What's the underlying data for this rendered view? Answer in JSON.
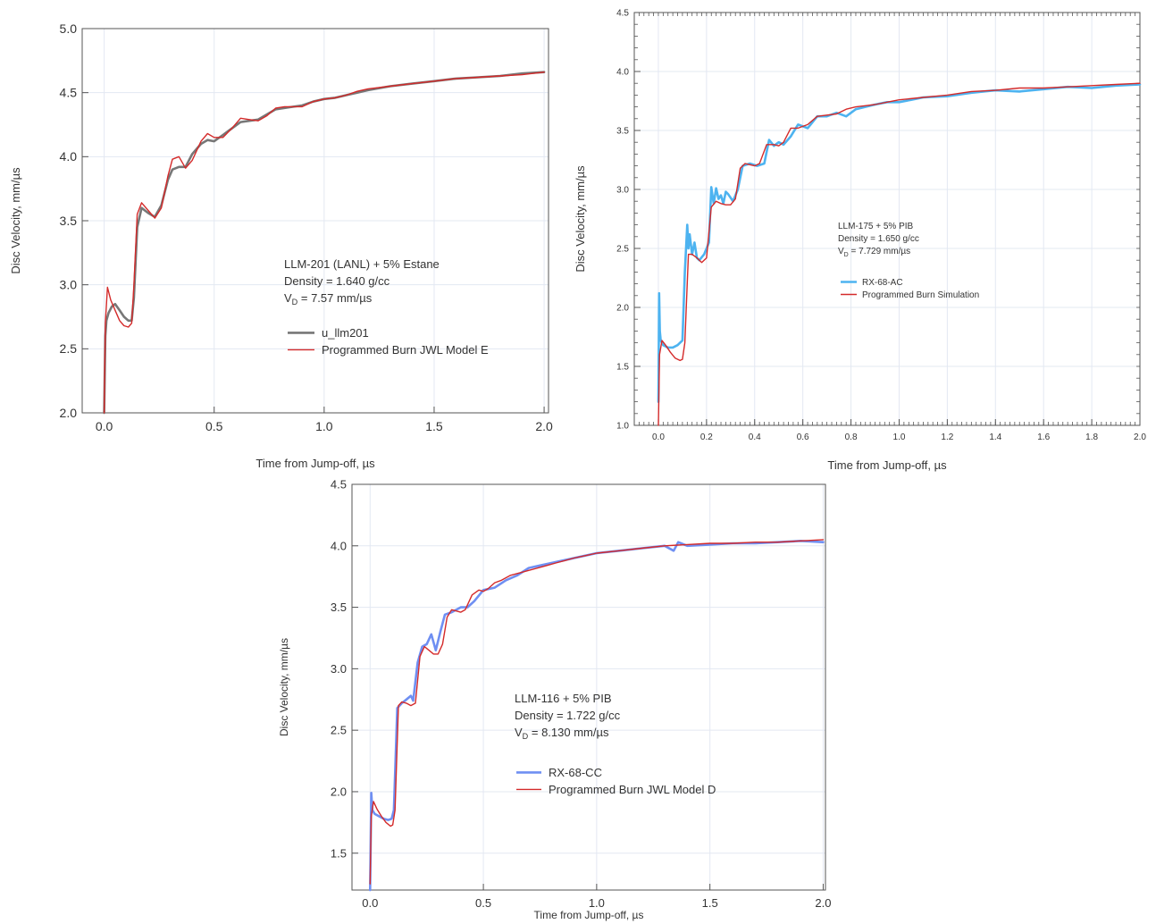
{
  "chart_data": [
    {
      "type": "line",
      "xlabel": "Time from Jump-off,  µs",
      "ylabel": "Disc Velocity,  mm/µs",
      "xlim": [
        -0.1,
        2.02
      ],
      "ylim": [
        2.0,
        5.0
      ],
      "x_ticks": [
        "0.0",
        "0.5",
        "1.0",
        "1.5",
        "2.0"
      ],
      "y_ticks": [
        "2.0",
        "2.5",
        "3.0",
        "3.5",
        "4.0",
        "4.5",
        "5.0"
      ],
      "grid": true,
      "annotation": {
        "line1": "LLM-201 (LANL) + 5% Estane",
        "line2": "Density = 1.640 g/cc",
        "line3_pre": "V",
        "line3_sub": "D",
        "line3_post": " = 7.57 mm/µs"
      },
      "series": [
        {
          "name": "u_llm201",
          "color": "#777777",
          "x": [
            0.0,
            0.005,
            0.01,
            0.02,
            0.035,
            0.05,
            0.07,
            0.09,
            0.11,
            0.125,
            0.135,
            0.15,
            0.17,
            0.2,
            0.23,
            0.26,
            0.29,
            0.31,
            0.34,
            0.37,
            0.4,
            0.44,
            0.47,
            0.5,
            0.54,
            0.58,
            0.62,
            0.66,
            0.7,
            0.74,
            0.78,
            0.82,
            0.86,
            0.9,
            0.95,
            1.0,
            1.05,
            1.1,
            1.15,
            1.2,
            1.3,
            1.4,
            1.5,
            1.6,
            1.7,
            1.8,
            1.9,
            2.0
          ],
          "y": [
            2.0,
            2.6,
            2.72,
            2.78,
            2.83,
            2.85,
            2.8,
            2.75,
            2.72,
            2.72,
            2.9,
            3.45,
            3.6,
            3.56,
            3.53,
            3.62,
            3.82,
            3.9,
            3.92,
            3.92,
            4.02,
            4.1,
            4.13,
            4.12,
            4.17,
            4.22,
            4.27,
            4.28,
            4.29,
            4.33,
            4.37,
            4.38,
            4.39,
            4.4,
            4.43,
            4.45,
            4.46,
            4.48,
            4.5,
            4.52,
            4.55,
            4.57,
            4.59,
            4.61,
            4.62,
            4.63,
            4.65,
            4.66
          ]
        },
        {
          "name": "Programmed Burn JWL Model E",
          "color": "#d42a2a",
          "x": [
            0.0,
            0.005,
            0.015,
            0.03,
            0.05,
            0.07,
            0.09,
            0.11,
            0.125,
            0.135,
            0.15,
            0.17,
            0.2,
            0.23,
            0.26,
            0.29,
            0.31,
            0.34,
            0.37,
            0.4,
            0.44,
            0.47,
            0.5,
            0.54,
            0.58,
            0.62,
            0.66,
            0.7,
            0.74,
            0.78,
            0.82,
            0.86,
            0.9,
            0.95,
            1.0,
            1.05,
            1.1,
            1.15,
            1.2,
            1.3,
            1.4,
            1.5,
            1.6,
            1.7,
            1.8,
            1.9,
            2.0
          ],
          "y": [
            2.0,
            2.7,
            2.98,
            2.88,
            2.8,
            2.72,
            2.68,
            2.67,
            2.7,
            3.0,
            3.55,
            3.64,
            3.58,
            3.52,
            3.6,
            3.85,
            3.98,
            4.0,
            3.91,
            3.97,
            4.12,
            4.18,
            4.15,
            4.15,
            4.22,
            4.3,
            4.29,
            4.28,
            4.32,
            4.38,
            4.39,
            4.39,
            4.39,
            4.43,
            4.45,
            4.46,
            4.48,
            4.51,
            4.53,
            4.55,
            4.57,
            4.59,
            4.61,
            4.62,
            4.63,
            4.64,
            4.66
          ]
        }
      ]
    },
    {
      "type": "line",
      "xlabel": "Time from Jump-off,  µs",
      "ylabel": "Disc Velocity,  mm/µs",
      "xlim": [
        -0.1,
        2.0
      ],
      "ylim": [
        1.0,
        4.5
      ],
      "x_ticks": [
        "0.0",
        "0.2",
        "0.4",
        "0.6",
        "0.8",
        "1.0",
        "1.2",
        "1.4",
        "1.6",
        "1.8",
        "2.0"
      ],
      "y_ticks": [
        "1.0",
        "1.5",
        "2.0",
        "2.5",
        "3.0",
        "3.5",
        "4.0",
        "4.5"
      ],
      "grid": true,
      "annotation": {
        "line1": "LLM-175 + 5% PIB",
        "line2": "Density = 1.650 g/cc",
        "line3_pre": "V",
        "line3_sub": "D",
        "line3_post": " = 7.729 mm/µs"
      },
      "series": [
        {
          "name": "RX-68-AC",
          "color": "#4db3f0",
          "x": [
            0.0,
            0.003,
            0.006,
            0.01,
            0.02,
            0.04,
            0.06,
            0.08,
            0.1,
            0.11,
            0.12,
            0.125,
            0.13,
            0.14,
            0.15,
            0.16,
            0.17,
            0.19,
            0.21,
            0.22,
            0.23,
            0.24,
            0.25,
            0.26,
            0.27,
            0.28,
            0.29,
            0.31,
            0.33,
            0.35,
            0.38,
            0.41,
            0.44,
            0.46,
            0.48,
            0.5,
            0.52,
            0.55,
            0.58,
            0.62,
            0.66,
            0.7,
            0.74,
            0.78,
            0.82,
            0.86,
            0.9,
            0.95,
            1.0,
            1.05,
            1.1,
            1.2,
            1.3,
            1.4,
            1.5,
            1.6,
            1.7,
            1.8,
            1.9,
            2.0
          ],
          "y": [
            1.2,
            2.12,
            1.8,
            1.72,
            1.68,
            1.66,
            1.66,
            1.68,
            1.72,
            2.3,
            2.7,
            2.5,
            2.62,
            2.45,
            2.55,
            2.42,
            2.4,
            2.45,
            2.55,
            3.02,
            2.88,
            3.01,
            2.92,
            2.95,
            2.88,
            2.98,
            2.96,
            2.9,
            3.0,
            3.2,
            3.22,
            3.2,
            3.22,
            3.42,
            3.37,
            3.4,
            3.38,
            3.45,
            3.55,
            3.52,
            3.62,
            3.62,
            3.65,
            3.62,
            3.68,
            3.7,
            3.72,
            3.74,
            3.74,
            3.76,
            3.78,
            3.79,
            3.82,
            3.84,
            3.83,
            3.85,
            3.87,
            3.86,
            3.88,
            3.89
          ]
        },
        {
          "name": "Programmed Burn Simulation",
          "color": "#d42a2a",
          "x": [
            0.0,
            0.005,
            0.015,
            0.03,
            0.05,
            0.07,
            0.09,
            0.1,
            0.11,
            0.125,
            0.14,
            0.16,
            0.18,
            0.2,
            0.22,
            0.24,
            0.26,
            0.28,
            0.3,
            0.32,
            0.34,
            0.36,
            0.38,
            0.4,
            0.42,
            0.45,
            0.48,
            0.5,
            0.52,
            0.55,
            0.58,
            0.62,
            0.66,
            0.7,
            0.74,
            0.78,
            0.82,
            0.86,
            0.9,
            0.95,
            1.0,
            1.1,
            1.2,
            1.3,
            1.4,
            1.5,
            1.6,
            1.7,
            1.8,
            1.9,
            2.0
          ],
          "y": [
            1.0,
            1.6,
            1.72,
            1.68,
            1.62,
            1.57,
            1.55,
            1.56,
            1.7,
            2.45,
            2.45,
            2.42,
            2.38,
            2.42,
            2.85,
            2.9,
            2.88,
            2.87,
            2.87,
            2.92,
            3.18,
            3.22,
            3.21,
            3.2,
            3.22,
            3.38,
            3.38,
            3.37,
            3.4,
            3.52,
            3.52,
            3.55,
            3.62,
            3.63,
            3.64,
            3.68,
            3.7,
            3.71,
            3.72,
            3.74,
            3.76,
            3.78,
            3.8,
            3.83,
            3.84,
            3.86,
            3.86,
            3.87,
            3.88,
            3.89,
            3.9
          ]
        }
      ]
    },
    {
      "type": "line",
      "xlabel": "Time from Jump-off,  µs",
      "ylabel": "Disc Velocity,  mm/µs",
      "xlim": [
        -0.08,
        2.01
      ],
      "ylim": [
        1.2,
        4.5
      ],
      "x_ticks": [
        "0.0",
        "0.5",
        "1.0",
        "1.5",
        "2.0"
      ],
      "y_ticks": [
        "1.5",
        "2.0",
        "2.5",
        "3.0",
        "3.5",
        "4.0",
        "4.5"
      ],
      "grid": true,
      "annotation": {
        "line1": "LLM-116 + 5% PIB",
        "line2": "Density = 1.722 g/cc",
        "line3_pre": "V",
        "line3_sub": "D",
        "line3_post": " = 8.130 mm/µs"
      },
      "series": [
        {
          "name": "RX-68-CC",
          "color": "#6f8ff2",
          "x": [
            0.0,
            0.005,
            0.01,
            0.02,
            0.04,
            0.06,
            0.08,
            0.095,
            0.105,
            0.12,
            0.14,
            0.16,
            0.18,
            0.19,
            0.21,
            0.23,
            0.25,
            0.27,
            0.29,
            0.31,
            0.33,
            0.36,
            0.4,
            0.43,
            0.46,
            0.5,
            0.55,
            0.6,
            0.65,
            0.7,
            0.75,
            0.8,
            0.85,
            0.9,
            1.0,
            1.1,
            1.2,
            1.3,
            1.34,
            1.36,
            1.4,
            1.5,
            1.6,
            1.7,
            1.8,
            1.9,
            2.0
          ],
          "y": [
            1.2,
            1.99,
            1.85,
            1.82,
            1.8,
            1.78,
            1.77,
            1.78,
            1.85,
            2.68,
            2.72,
            2.75,
            2.78,
            2.74,
            3.05,
            3.18,
            3.2,
            3.28,
            3.15,
            3.3,
            3.44,
            3.46,
            3.5,
            3.5,
            3.55,
            3.64,
            3.66,
            3.72,
            3.76,
            3.82,
            3.84,
            3.86,
            3.88,
            3.9,
            3.94,
            3.96,
            3.98,
            4.0,
            3.96,
            4.03,
            4.0,
            4.01,
            4.02,
            4.02,
            4.03,
            4.04,
            4.03
          ]
        },
        {
          "name": "Programmed Burn JWL Model D",
          "color": "#d42a2a",
          "x": [
            0.0,
            0.005,
            0.015,
            0.03,
            0.05,
            0.07,
            0.09,
            0.1,
            0.11,
            0.125,
            0.14,
            0.16,
            0.18,
            0.2,
            0.22,
            0.24,
            0.26,
            0.28,
            0.3,
            0.32,
            0.34,
            0.36,
            0.38,
            0.4,
            0.42,
            0.45,
            0.48,
            0.5,
            0.52,
            0.55,
            0.58,
            0.62,
            0.66,
            0.7,
            0.74,
            0.78,
            0.82,
            0.86,
            0.9,
            0.95,
            1.0,
            1.1,
            1.2,
            1.3,
            1.4,
            1.5,
            1.6,
            1.7,
            1.8,
            1.9,
            2.0
          ],
          "y": [
            1.25,
            1.8,
            1.92,
            1.86,
            1.8,
            1.75,
            1.72,
            1.73,
            1.85,
            2.7,
            2.73,
            2.72,
            2.7,
            2.72,
            3.1,
            3.18,
            3.15,
            3.12,
            3.12,
            3.2,
            3.42,
            3.48,
            3.47,
            3.46,
            3.48,
            3.6,
            3.64,
            3.63,
            3.65,
            3.7,
            3.72,
            3.76,
            3.78,
            3.8,
            3.82,
            3.84,
            3.86,
            3.88,
            3.9,
            3.92,
            3.94,
            3.96,
            3.98,
            4.0,
            4.01,
            4.02,
            4.02,
            4.03,
            4.03,
            4.04,
            4.05
          ]
        }
      ]
    }
  ]
}
